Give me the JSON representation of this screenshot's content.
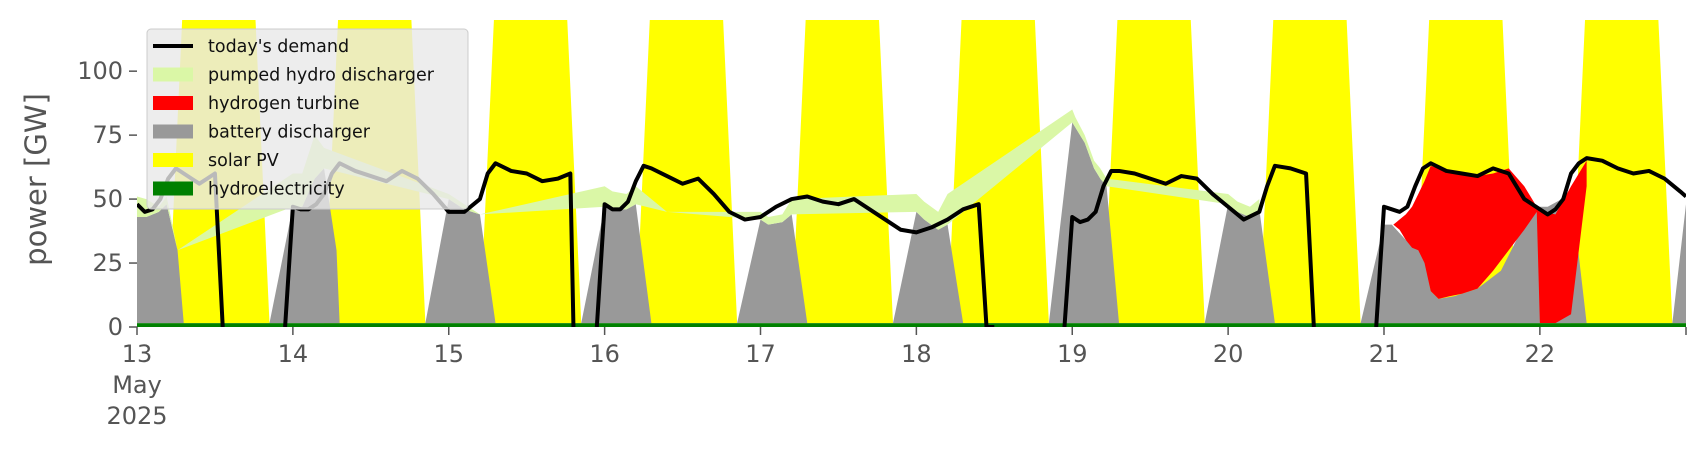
{
  "chart_data": {
    "type": "area",
    "ylabel": "power [GW]",
    "ylim": [
      0,
      120
    ],
    "yticks": [
      0,
      25,
      50,
      75,
      100
    ],
    "xlim": [
      0,
      9.9375
    ],
    "x_tick_positions": [
      0,
      1,
      2,
      3,
      4,
      5,
      6,
      7,
      8,
      9
    ],
    "x_tick_labels": [
      "13",
      "14",
      "15",
      "16",
      "17",
      "18",
      "19",
      "20",
      "21",
      "22"
    ],
    "x_tick_sublabels": [
      "May",
      "2025"
    ],
    "grid": false,
    "legend_position": "top-left",
    "legend": [
      {
        "label": "today's demand",
        "color": "#000000",
        "kind": "line"
      },
      {
        "label": "pumped hydro discharger",
        "color": "#daf7a6",
        "kind": "patch"
      },
      {
        "label": "hydrogen turbine",
        "color": "#ff0000",
        "kind": "patch"
      },
      {
        "label": "battery discharger",
        "color": "#999999",
        "kind": "patch"
      },
      {
        "label": "solar PV",
        "color": "#ffff00",
        "kind": "patch"
      },
      {
        "label": "hydroelectricity",
        "color": "#008000",
        "kind": "patch"
      }
    ],
    "stack_order": [
      "hydroelectricity",
      "solar PV",
      "battery discharger",
      "hydrogen turbine",
      "pumped hydro discharger"
    ],
    "stack_colors": {
      "hydroelectricity": "#008000",
      "solar PV": "#ffff00",
      "battery discharger": "#999999",
      "hydrogen turbine": "#ff0000",
      "pumped hydro discharger": "#daf7a6"
    },
    "hydro_level": 1.5,
    "solar_days": [
      {
        "start": 0.2,
        "end": 0.85,
        "ramp": 0.12
      },
      {
        "start": 1.2,
        "end": 1.85,
        "ramp": 0.12
      },
      {
        "start": 2.2,
        "end": 2.85,
        "ramp": 0.12
      },
      {
        "start": 3.2,
        "end": 3.85,
        "ramp": 0.12
      },
      {
        "start": 4.2,
        "end": 4.85,
        "ramp": 0.12
      },
      {
        "start": 5.2,
        "end": 5.85,
        "ramp": 0.12
      },
      {
        "start": 6.2,
        "end": 6.85,
        "ramp": 0.12
      },
      {
        "start": 7.2,
        "end": 7.85,
        "ramp": 0.12
      },
      {
        "start": 8.2,
        "end": 8.85,
        "ramp": 0.12
      },
      {
        "start": 9.2,
        "end": 9.85,
        "ramp": 0.12
      }
    ],
    "battery_discharger": {
      "x": [
        0,
        0.06,
        0.14,
        0.19,
        0.26,
        0.3,
        0.7,
        0.85,
        1.0,
        1.06,
        1.14,
        1.2,
        1.28,
        1.3,
        1.7,
        1.85,
        2.0,
        2.1,
        2.2,
        2.3,
        2.7,
        2.85,
        3.0,
        3.05,
        3.14,
        3.2,
        3.3,
        3.7,
        3.85,
        4.0,
        4.05,
        4.14,
        4.2,
        4.3,
        4.7,
        4.85,
        5.0,
        5.05,
        5.14,
        5.2,
        5.3,
        5.7,
        5.85,
        6.0,
        6.02,
        6.08,
        6.14,
        6.18,
        6.22,
        6.3,
        6.7,
        6.85,
        7.0,
        7.06,
        7.14,
        7.2,
        7.3,
        7.7,
        7.85,
        8.0,
        8.05,
        8.14,
        8.2,
        8.25,
        8.3,
        8.35,
        8.45,
        8.6,
        8.75,
        8.9,
        9.0,
        9.05,
        9.14,
        9.2,
        9.3,
        9.7,
        9.85,
        9.9375
      ],
      "y": [
        43,
        43,
        45,
        48,
        30,
        0,
        0,
        0,
        47,
        47,
        58,
        62,
        30,
        0,
        0,
        0,
        50,
        46,
        44,
        0,
        0,
        0,
        47,
        46,
        46,
        48,
        0,
        0,
        0,
        42,
        40,
        41,
        44,
        0,
        0,
        0,
        45,
        42,
        38,
        40,
        0,
        0,
        0,
        80,
        78,
        72,
        62,
        58,
        55,
        0,
        0,
        0,
        48,
        45,
        43,
        46,
        0,
        0,
        0,
        40,
        40,
        34,
        31,
        30,
        14,
        11,
        12,
        15,
        22,
        40,
        47,
        47,
        50,
        54,
        0,
        0,
        0,
        48
      ]
    },
    "hydrogen_turbine": {
      "x": [
        8.0,
        8.02,
        8.06,
        8.1,
        8.14,
        8.18,
        8.22,
        8.26,
        8.3,
        8.35,
        8.42,
        8.5,
        8.6,
        8.7,
        8.8,
        8.9,
        8.98,
        9.0,
        9.02,
        9.1,
        9.2,
        9.3
      ],
      "top": [
        0,
        40,
        40,
        42,
        44,
        47,
        52,
        57,
        63,
        62,
        61,
        60,
        59,
        60,
        62,
        55,
        47,
        45,
        45,
        44,
        55,
        65
      ],
      "bottom": [
        0,
        40,
        40,
        38,
        34,
        31,
        30,
        25,
        14,
        11,
        12,
        13,
        15,
        22,
        30,
        38,
        45,
        1.5,
        1.5,
        1.5,
        5,
        55
      ]
    },
    "pumped_hydro_discharger": {
      "x": [
        0,
        0.06,
        0.14,
        0.19,
        0.26,
        1.0,
        1.06,
        1.14,
        1.2,
        2.0,
        2.1,
        2.2,
        3.0,
        3.05,
        3.14,
        3.2,
        3.4,
        4.0,
        4.05,
        4.14,
        4.2,
        5.0,
        5.05,
        5.14,
        5.2,
        6.0,
        6.02,
        6.08,
        6.14,
        6.18,
        6.22,
        7.0,
        7.06,
        7.14,
        7.2
      ],
      "top": [
        51,
        50,
        47,
        51,
        30,
        60,
        60,
        75,
        70,
        52,
        48,
        44,
        55,
        53,
        52,
        55,
        45,
        45,
        43,
        44,
        50,
        52,
        49,
        45,
        52,
        85,
        82,
        75,
        65,
        62,
        58,
        52,
        49,
        47,
        50
      ],
      "bottom": [
        43,
        43,
        45,
        48,
        30,
        47,
        47,
        58,
        62,
        50,
        46,
        44,
        47,
        46,
        46,
        48,
        45,
        42,
        40,
        41,
        44,
        45,
        42,
        38,
        40,
        80,
        78,
        72,
        62,
        58,
        55,
        48,
        45,
        43,
        46
      ]
    },
    "todays_demand": {
      "segments": [
        {
          "x": [
            0,
            0.05,
            0.1,
            0.15,
            0.2,
            0.25,
            0.3,
            0.35,
            0.4,
            0.45,
            0.5,
            0.55
          ],
          "y": [
            48,
            45,
            46,
            50,
            58,
            62,
            60,
            58,
            56,
            58,
            60,
            0
          ]
        },
        {
          "x": [
            0.95,
            1.0,
            1.05,
            1.1,
            1.15,
            1.2,
            1.25,
            1.3,
            1.4,
            1.5,
            1.6,
            1.7,
            1.8,
            1.9,
            2.0,
            2.1,
            2.2,
            2.25,
            2.3,
            2.4,
            2.5,
            2.6,
            2.7,
            2.78,
            2.8
          ],
          "y": [
            0,
            47,
            46,
            46,
            48,
            52,
            60,
            64,
            61,
            59,
            57,
            61,
            58,
            52,
            45,
            45,
            50,
            60,
            64,
            61,
            60,
            57,
            58,
            60,
            0
          ]
        },
        {
          "x": [
            2.95,
            3.0,
            3.05,
            3.1,
            3.15,
            3.2,
            3.25,
            3.3,
            3.4,
            3.5,
            3.6,
            3.7,
            3.8,
            3.9,
            4.0,
            4.1,
            4.2,
            4.3,
            4.4,
            4.5,
            4.6,
            4.7,
            4.8,
            4.9,
            5.0,
            5.1,
            5.2,
            5.3,
            5.4,
            5.45,
            5.5
          ],
          "y": [
            0,
            48,
            46,
            46,
            49,
            57,
            63,
            62,
            59,
            56,
            58,
            52,
            45,
            42,
            43,
            47,
            50,
            51,
            49,
            48,
            50,
            46,
            42,
            38,
            37,
            39,
            42,
            46,
            48,
            0,
            0
          ]
        },
        {
          "x": [
            5.95,
            6.0,
            6.05,
            6.1,
            6.15,
            6.2,
            6.25,
            6.3,
            6.4,
            6.5,
            6.6,
            6.7,
            6.8,
            6.9,
            7.0,
            7.1,
            7.2,
            7.25,
            7.3,
            7.4,
            7.5,
            7.55
          ],
          "y": [
            0,
            43,
            41,
            42,
            45,
            55,
            61,
            61,
            60,
            58,
            56,
            59,
            58,
            52,
            47,
            42,
            45,
            55,
            63,
            62,
            60,
            0
          ]
        },
        {
          "x": [
            7.95,
            8.0,
            8.05,
            8.1,
            8.15,
            8.2,
            8.25,
            8.3,
            8.4,
            8.5,
            8.6,
            8.7,
            8.8,
            8.9,
            9.0,
            9.05,
            9.1,
            9.15,
            9.2,
            9.25,
            9.3,
            9.4,
            9.5,
            9.6,
            9.7,
            9.8,
            9.9,
            9.9375
          ],
          "y": [
            0,
            47,
            46,
            45,
            47,
            55,
            62,
            64,
            61,
            60,
            59,
            62,
            60,
            50,
            46,
            44,
            46,
            50,
            60,
            64,
            66,
            65,
            62,
            60,
            61,
            58,
            53,
            51
          ]
        }
      ]
    }
  }
}
